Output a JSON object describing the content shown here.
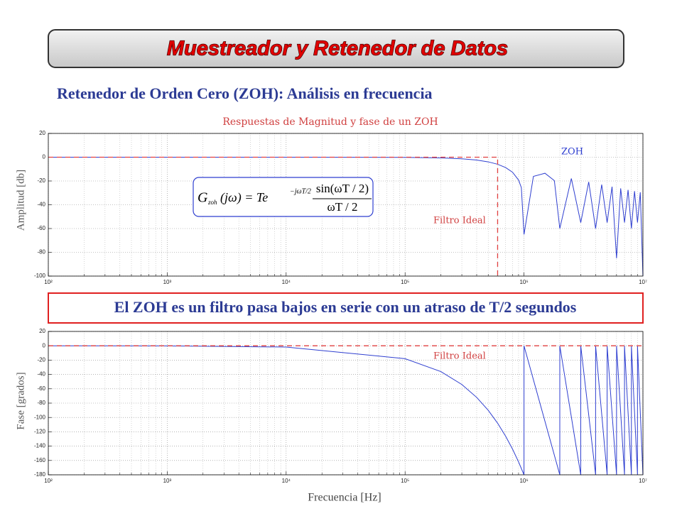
{
  "slide": {
    "title": "Muestreador y Retenedor de Datos",
    "subtitle": "Retenedor de Orden Cero (ZOH): Análisis en frecuencia",
    "banner": "El ZOH es un filtro pasa bajos en serie con un atraso de T/2 segundos"
  },
  "chart_data": [
    {
      "type": "line",
      "title": "Respuestas de Magnitud y fase de un ZOH",
      "ylabel": "Amplitud [db]",
      "formula": {
        "symbol": "G",
        "sub": "zoh",
        "arg": "(jω) = Te",
        "exp": "−jωT/2",
        "num": "sin(ωT / 2)",
        "den": "ωT / 2"
      },
      "xscale": "log",
      "grid": true,
      "minor_grid": true,
      "xlim": [
        100,
        10000000
      ],
      "xticks": [
        {
          "value": 100,
          "label": "10²"
        },
        {
          "value": 1000,
          "label": "10³"
        },
        {
          "value": 10000,
          "label": "10⁴"
        },
        {
          "value": 100000,
          "label": "10⁵"
        },
        {
          "value": 1000000,
          "label": "10⁶"
        },
        {
          "value": 10000000,
          "label": "10⁷"
        }
      ],
      "ylim": [
        -100,
        20
      ],
      "yticks": [
        -100,
        -80,
        -60,
        -40,
        -20,
        0,
        20
      ],
      "series": [
        {
          "name": "ZOH",
          "color": "#2f3fd0",
          "dashed": false,
          "x": [
            100,
            1000,
            10000,
            100000,
            200000,
            300000,
            400000,
            500000,
            600000,
            700000,
            800000,
            900000,
            950000,
            1000000,
            1200000,
            1500000,
            1800000,
            2000000,
            2500000,
            3000000,
            3500000,
            4000000,
            4500000,
            5000000,
            5500000,
            6000000,
            6500000,
            7000000,
            7500000,
            8000000,
            8500000,
            9000000,
            9500000,
            10000000
          ],
          "values": [
            0,
            0,
            0,
            -0.14,
            -0.58,
            -1.33,
            -2.42,
            -3.92,
            -5.94,
            -8.68,
            -12.6,
            -19.2,
            -25.6,
            -65,
            -16.1,
            -13.5,
            -19.7,
            -60,
            -17.9,
            -55,
            -20.8,
            -60,
            -23.0,
            -55,
            -24.8,
            -85,
            -26.2,
            -55,
            -27.5,
            -60,
            -28.5,
            -55,
            -29.5,
            -100
          ]
        },
        {
          "name": "Filtro Ideal",
          "color": "#e04040",
          "dashed": true,
          "x": [
            100,
            600000,
            600000
          ],
          "values": [
            0,
            0,
            -100
          ]
        }
      ]
    },
    {
      "type": "line",
      "ylabel": "Fase [grados]",
      "xlabel": "Frecuencia [Hz]",
      "xscale": "log",
      "grid": true,
      "minor_grid": true,
      "xlim": [
        100,
        10000000
      ],
      "xticks": [
        {
          "value": 100,
          "label": "10²"
        },
        {
          "value": 1000,
          "label": "10³"
        },
        {
          "value": 10000,
          "label": "10⁴"
        },
        {
          "value": 100000,
          "label": "10⁵"
        },
        {
          "value": 1000000,
          "label": "10⁶"
        },
        {
          "value": 10000000,
          "label": "10⁷"
        }
      ],
      "ylim": [
        -180,
        20
      ],
      "yticks": [
        -180,
        -160,
        -140,
        -120,
        -100,
        -80,
        -60,
        -40,
        -20,
        0,
        20
      ],
      "series": [
        {
          "color": "#2f3fd0",
          "dashed": false,
          "x": [
            100,
            1000,
            10000,
            100000,
            200000,
            300000,
            400000,
            500000,
            600000,
            700000,
            800000,
            900000,
            1000000,
            1000000,
            2000000,
            2000000,
            3000000,
            3000000,
            4000000,
            4000000,
            5000000,
            5000000,
            6000000,
            6000000,
            7000000,
            7000000,
            8000000,
            8000000,
            9000000,
            9000000,
            10000000
          ],
          "values": [
            -0.018,
            -0.18,
            -1.8,
            -18,
            -36,
            -54,
            -72,
            -90,
            -108,
            -126,
            -144,
            -162,
            -180,
            0,
            -180,
            0,
            -180,
            0,
            -180,
            0,
            -180,
            0,
            -180,
            0,
            -180,
            0,
            -180,
            0,
            -180,
            0,
            -180
          ]
        },
        {
          "name": "Filtro Ideal",
          "color": "#e04040",
          "dashed": true,
          "x": [
            100,
            10000000
          ],
          "values": [
            0,
            0
          ]
        }
      ]
    }
  ]
}
